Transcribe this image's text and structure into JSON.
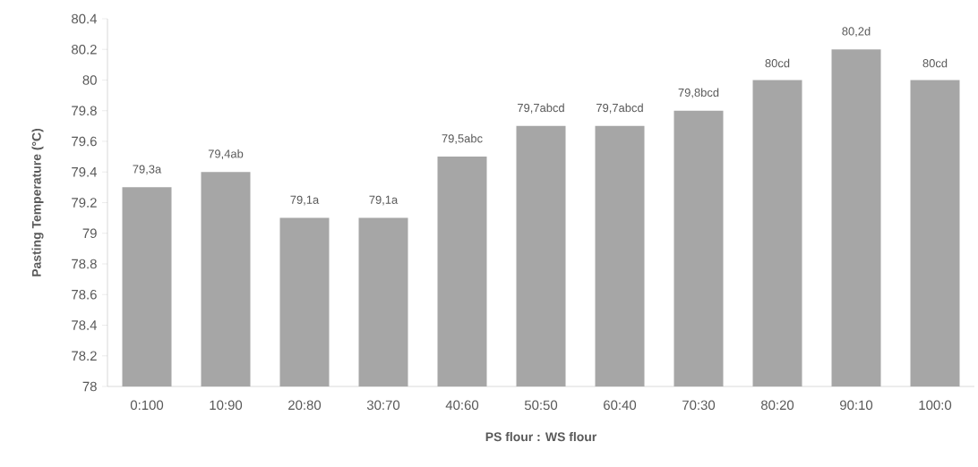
{
  "chart_data": {
    "type": "bar",
    "xlabel": "PS flour : WS flour",
    "ylabel": "Pasting Temperature (°C)",
    "categories": [
      "0:100",
      "10:90",
      "20:80",
      "30:70",
      "40:60",
      "50:50",
      "60:40",
      "70:30",
      "80:20",
      "90:10",
      "100:0"
    ],
    "values": [
      79.3,
      79.4,
      79.1,
      79.1,
      79.5,
      79.7,
      79.7,
      79.8,
      80,
      80.2,
      80
    ],
    "value_labels": [
      "79,3a",
      "79,4ab",
      "79,1a",
      "79,1a",
      "79,5abc",
      "79,7abcd",
      "79,7abcd",
      "79,8bcd",
      "80cd",
      "80,2d",
      "80cd"
    ],
    "color": "#a6a6a6",
    "ylim": [
      78,
      80.4
    ],
    "yticks": [
      78,
      78.2,
      78.4,
      78.6,
      78.8,
      79,
      79.2,
      79.4,
      79.6,
      79.8,
      80,
      80.2,
      80.4
    ],
    "grid": false
  }
}
